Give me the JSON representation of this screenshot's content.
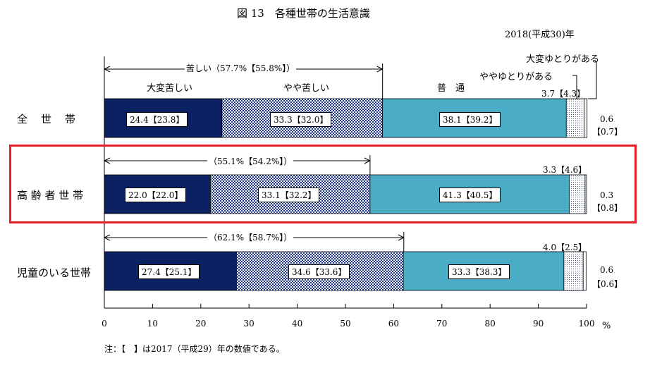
{
  "chart_data": {
    "type": "bar",
    "orientation": "horizontal",
    "stacked": true,
    "title": "図 13　各種世帯の生活意識",
    "subtitle": "2018(平成30)年",
    "xunit": "%",
    "xlim": [
      0,
      100
    ],
    "xticks": [
      "0",
      "10",
      "20",
      "30",
      "40",
      "50",
      "60",
      "70",
      "80",
      "90",
      "100"
    ],
    "categories": [
      "全　世　帯",
      "高 齢 者 世 帯",
      "児童のいる世帯"
    ],
    "series": [
      {
        "name": "大変苦しい",
        "color": "#0b2161",
        "values": [
          24.4,
          22.0,
          27.4
        ],
        "prev": [
          23.8,
          22.0,
          25.1
        ]
      },
      {
        "name": "やや苦しい",
        "color": "#2e4a8f",
        "values": [
          33.3,
          33.1,
          34.6
        ],
        "prev": [
          32.0,
          32.2,
          33.6
        ]
      },
      {
        "name": "普　通",
        "color": "#4bacc6",
        "values": [
          38.1,
          41.3,
          33.3
        ],
        "prev": [
          39.2,
          40.5,
          38.3
        ]
      },
      {
        "name": "ややゆとりがある",
        "color": "#dbe3ef",
        "values": [
          3.7,
          3.3,
          4.0
        ],
        "prev": [
          4.3,
          4.6,
          2.5
        ]
      },
      {
        "name": "大変ゆとりがある",
        "color": "#ffffff",
        "values": [
          0.6,
          0.3,
          0.6
        ],
        "prev": [
          0.7,
          0.8,
          0.6
        ]
      }
    ],
    "segment_labels": [
      [
        "24.4【23.8】",
        "33.3【32.0】",
        "38.1【39.2】"
      ],
      [
        "22.0【22.0】",
        "33.1【32.2】",
        "41.3【40.5】"
      ],
      [
        "27.4【25.1】",
        "34.6【33.6】",
        "33.3【38.3】"
      ]
    ],
    "yutori_labels": [
      "3.7【4.3】",
      "3.3【4.6】",
      "4.0【2.5】"
    ],
    "taihen_yutori_labels": [
      [
        "0.6",
        "【0.7】"
      ],
      [
        "0.3",
        "【0.8】"
      ],
      [
        "0.6",
        "【0.6】"
      ]
    ],
    "kurushii_totals": [
      "苦しい（57.7%【55.8%】）",
      "（55.1%【54.2%】）",
      "（62.1%【58.7%】）"
    ],
    "kurushii_values": [
      57.7,
      55.1,
      62.1
    ],
    "header_labels": {
      "taihen_kurushii": "大変苦しい",
      "yaya_kurushii": "やや苦しい",
      "futsu": "普　通",
      "yaya_yutori": "ややゆとりがある",
      "taihen_yutori": "大変ゆとりがある"
    },
    "highlight_category": "高 齢 者 世 帯",
    "highlight_color": "#e3202b",
    "note": "注：【　】は2017（平成29）年の数値である。",
    "grid": false,
    "legend": "none"
  }
}
